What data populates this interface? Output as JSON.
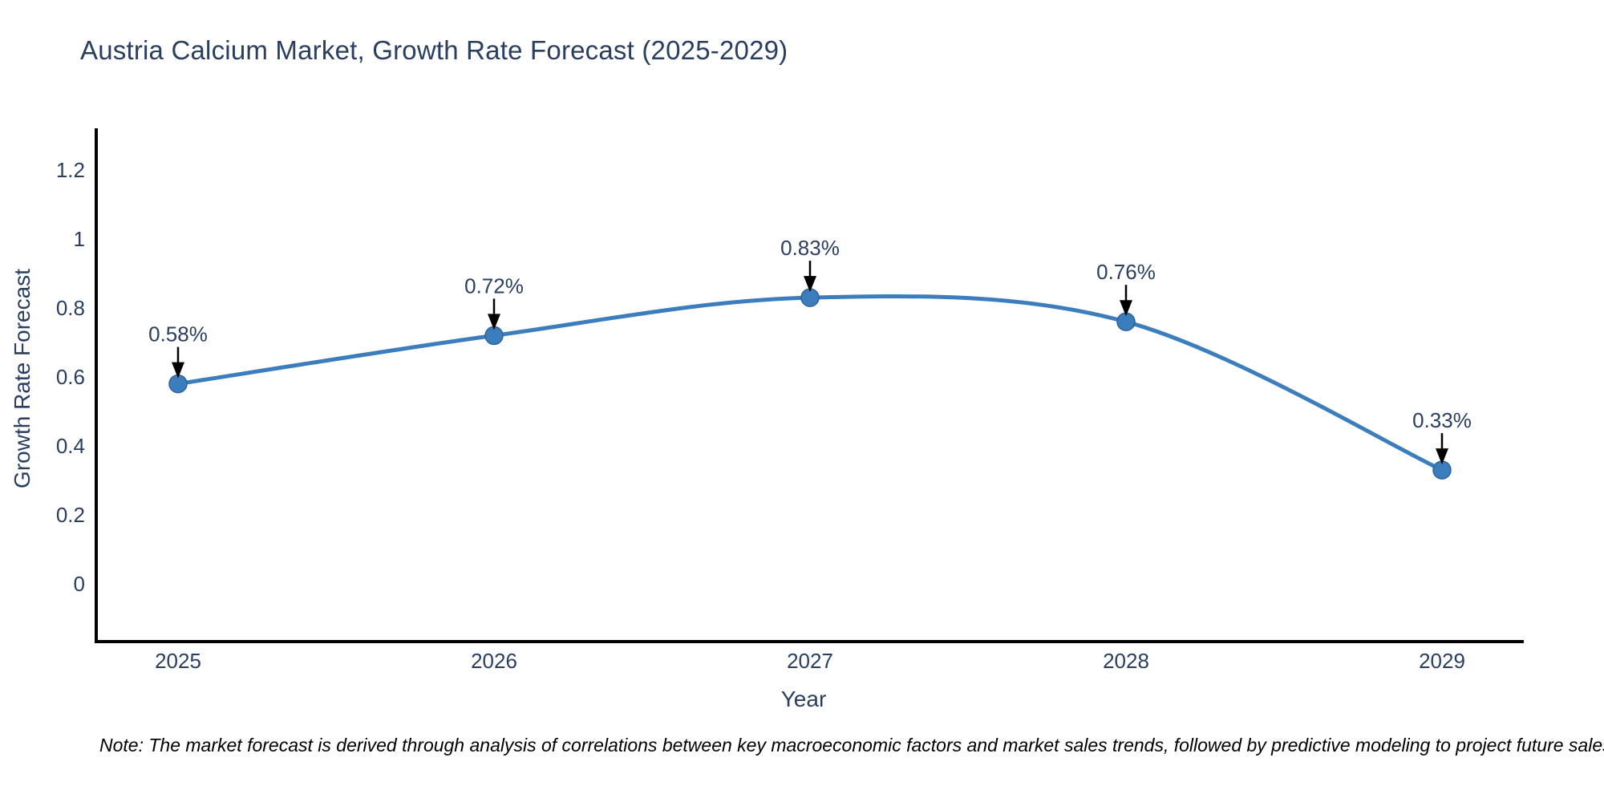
{
  "page": {
    "background": "#ffffff",
    "note": "Note: The market forecast is derived through analysis of correlations between key macroeconomic factors and market sales trends, followed by predictive modeling to project future sales"
  },
  "chart_data": {
    "type": "line",
    "title": "Austria Calcium Market, Growth Rate Forecast (2025-2029)",
    "xlabel": "Year",
    "ylabel": "Growth Rate Forecast",
    "categories": [
      "2025",
      "2026",
      "2027",
      "2028",
      "2029"
    ],
    "series": [
      {
        "name": "Growth Rate Forecast",
        "values": [
          0.58,
          0.72,
          0.83,
          0.76,
          0.33
        ],
        "point_labels": [
          "0.58%",
          "0.72%",
          "0.83%",
          "0.76%",
          "0.33%"
        ]
      }
    ],
    "line_shape": "spline",
    "markers": true,
    "annotation_arrows": true,
    "yticks": [
      0,
      0.2,
      0.4,
      0.6,
      0.8,
      1,
      1.2
    ],
    "ytick_labels": [
      "0",
      "0.2",
      "0.4",
      "0.6",
      "0.8",
      "1",
      "1.2"
    ],
    "ylim": [
      -0.17,
      1.33
    ],
    "grid": false,
    "legend_position": "none",
    "colors": {
      "line": "#3C7EBD",
      "marker_fill": "#3C7EBD",
      "marker_edge": "#2D6397",
      "axis_line": "#000000",
      "chart_text": "#2a3f5f",
      "annotation_arrow": "#000000",
      "note_text": "#000000"
    }
  }
}
